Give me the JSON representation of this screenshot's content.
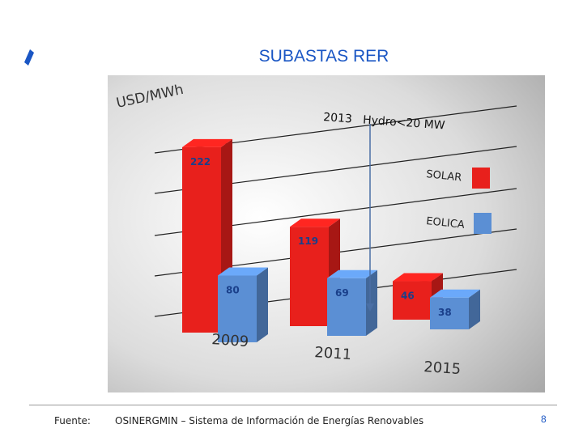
{
  "slide": {
    "title": "SUBASTAS RER",
    "footer_label": "Fuente:",
    "footer_source": "OSINERGMIN – Sistema de Información de Energías Renovables",
    "page_number": "8",
    "accent_color": "#1a56c4"
  },
  "chart_data": {
    "type": "bar",
    "title": "",
    "ylabel": "USD/MWh",
    "categories": [
      "2009",
      "2011",
      "2015"
    ],
    "series": [
      {
        "name": "SOLAR",
        "color": "#e8201c",
        "values": [
          222,
          119,
          46
        ]
      },
      {
        "name": "EOLICA",
        "color": "#5b8fd4",
        "values": [
          80,
          69,
          38
        ]
      }
    ],
    "ylim": [
      0,
      250
    ],
    "grid": true,
    "legend_position": "right",
    "annotation": "2013   Hydro<20 MW"
  }
}
